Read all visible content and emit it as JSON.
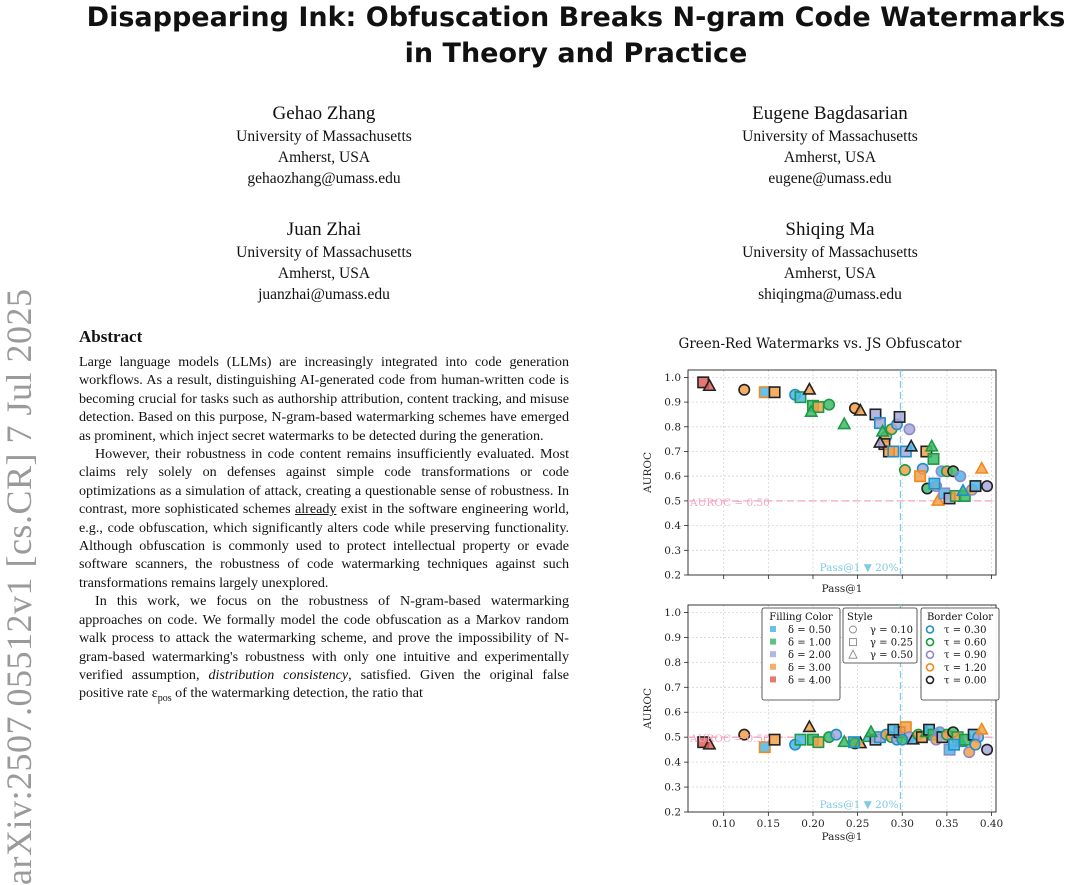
{
  "paper": {
    "title_line1": "Disappearing Ink: Obfuscation Breaks N-gram Code Watermarks",
    "title_line2": "in Theory and Practice",
    "authors": [
      {
        "name": "Gehao Zhang",
        "affil": "University of Massachusetts",
        "loc": "Amherst, USA",
        "email": "gehaozhang@umass.edu"
      },
      {
        "name": "Eugene Bagdasarian",
        "affil": "University of Massachusetts",
        "loc": "Amherst, USA",
        "email": "eugene@umass.edu"
      },
      {
        "name": "Juan Zhai",
        "affil": "University of Massachusetts",
        "loc": "Amherst, USA",
        "email": "juanzhai@umass.edu"
      },
      {
        "name": "Shiqing Ma",
        "affil": "University of Massachusetts",
        "loc": "Amherst, USA",
        "email": "shiqingma@umass.edu"
      }
    ],
    "arxiv_id": "arXiv:2507.05512v1  [cs.CR]  7 Jul 2025",
    "abstract_heading": "Abstract",
    "p1": "Large language models (LLMs) are increasingly integrated into code generation workflows. As a result, distinguishing AI-generated code from human-written code is becoming crucial for tasks such as authorship attribution, content tracking, and misuse detection. Based on this purpose, N-gram-based watermarking schemes have emerged as prominent, which inject secret watermarks to be detected during the generation.",
    "p2a": "However, their robustness in code content remains insufficiently evaluated. Most claims rely solely on defenses against simple code transformations or code optimizations as a simulation of attack, creating a questionable sense of robustness. In contrast, more sophisticated schemes ",
    "p2u": "already",
    "p2b": " exist in the software engineering world, e.g., code obfuscation, which significantly alters code while preserving functionality. Although obfuscation is commonly used to protect intellectual property or evade software scanners, the robustness of code watermarking techniques against such transformations remains largely unexplored.",
    "p3a": "In this work, we focus on the robustness of N-gram-based watermarking approaches on code. We formally model the code obfuscation as a Markov random walk process to attack the watermarking scheme, and prove the impossibility of N-gram-based watermarking's robustness with only one intuitive and experimentally verified assumption, ",
    "p3i": "distribution consistency",
    "p3b": ", satisfied. Given the original false positive rate ε",
    "p3s": "pos",
    "p3c": " of the watermarking detection, the ratio that"
  },
  "figure": {
    "title": "Green-Red Watermarks vs. JS Obfuscator",
    "ylabel": "AUROC",
    "xlabel": "Pass@1",
    "baseline_label": "AUROC = 0.50",
    "threshold_label": "Pass@1 ▼ 20%",
    "legend": {
      "fill_title": "Filling Color",
      "fill_items": [
        "δ = 0.50",
        "δ = 1.00",
        "δ = 2.00",
        "δ = 3.00",
        "δ = 4.00"
      ],
      "style_title": "Style",
      "style_items": [
        "γ = 0.10",
        "γ = 0.25",
        "γ = 0.50"
      ],
      "border_title": "Border Color",
      "border_items": [
        "τ = 0.30",
        "τ = 0.60",
        "τ = 0.90",
        "τ = 1.20",
        "τ = 0.00"
      ]
    },
    "colors": {
      "fill": [
        "#4fb6e8",
        "#3fb86a",
        "#a8a8dc",
        "#f5a04a",
        "#e0605a"
      ],
      "border": [
        "#1f8fc8",
        "#1c9a45",
        "#8b8bc6",
        "#f08a1c",
        "#222222"
      ],
      "baseline": "#f4a6bf",
      "threshold": "#7fcbe0"
    }
  },
  "chart_data": [
    {
      "type": "scatter",
      "title": "Green-Red Watermarks vs. JS Obfuscator",
      "xlabel": "Pass@1",
      "ylabel": "AUROC",
      "xlim": [
        0.06,
        0.405
      ],
      "ylim": [
        0.2,
        1.03
      ],
      "xticks": [
        0.1,
        0.15,
        0.2,
        0.25,
        0.3,
        0.35,
        0.4
      ],
      "yticks": [
        0.2,
        0.3,
        0.4,
        0.5,
        0.6,
        0.7,
        0.8,
        0.9,
        1.0
      ],
      "hline": 0.5,
      "vline": 0.298,
      "grid": true,
      "points": [
        [
          0.077,
          0.98,
          4,
          4,
          1
        ],
        [
          0.084,
          0.965,
          4,
          4,
          2
        ],
        [
          0.123,
          0.95,
          3,
          4,
          0
        ],
        [
          0.146,
          0.94,
          0,
          3,
          1
        ],
        [
          0.157,
          0.94,
          3,
          4,
          1
        ],
        [
          0.18,
          0.93,
          0,
          0,
          0
        ],
        [
          0.186,
          0.92,
          0,
          1,
          1
        ],
        [
          0.196,
          0.95,
          3,
          4,
          2
        ],
        [
          0.2,
          0.885,
          1,
          1,
          1
        ],
        [
          0.206,
          0.88,
          3,
          1,
          1
        ],
        [
          0.218,
          0.89,
          1,
          1,
          0
        ],
        [
          0.198,
          0.86,
          1,
          1,
          2
        ],
        [
          0.235,
          0.81,
          1,
          1,
          2
        ],
        [
          0.247,
          0.875,
          3,
          4,
          0
        ],
        [
          0.253,
          0.865,
          3,
          4,
          2
        ],
        [
          0.27,
          0.85,
          2,
          4,
          1
        ],
        [
          0.275,
          0.815,
          2,
          0,
          1
        ],
        [
          0.282,
          0.76,
          3,
          0,
          0
        ],
        [
          0.288,
          0.79,
          3,
          1,
          0
        ],
        [
          0.294,
          0.81,
          2,
          0,
          0
        ],
        [
          0.297,
          0.84,
          2,
          4,
          1
        ],
        [
          0.304,
          0.7,
          2,
          0,
          1
        ],
        [
          0.308,
          0.79,
          2,
          2,
          0
        ],
        [
          0.31,
          0.72,
          0,
          4,
          2
        ],
        [
          0.303,
          0.625,
          3,
          1,
          0
        ],
        [
          0.28,
          0.73,
          3,
          4,
          1
        ],
        [
          0.285,
          0.7,
          3,
          4,
          1
        ],
        [
          0.29,
          0.7,
          3,
          0,
          1
        ],
        [
          0.275,
          0.735,
          2,
          4,
          2
        ],
        [
          0.278,
          0.78,
          1,
          1,
          2
        ],
        [
          0.323,
          0.63,
          2,
          0,
          0
        ],
        [
          0.32,
          0.6,
          3,
          3,
          1
        ],
        [
          0.327,
          0.7,
          3,
          4,
          1
        ],
        [
          0.333,
          0.72,
          1,
          1,
          2
        ],
        [
          0.335,
          0.67,
          1,
          1,
          1
        ],
        [
          0.328,
          0.55,
          1,
          4,
          0
        ],
        [
          0.338,
          0.56,
          3,
          2,
          0
        ],
        [
          0.34,
          0.5,
          3,
          3,
          2
        ],
        [
          0.344,
          0.62,
          0,
          2,
          0
        ],
        [
          0.347,
          0.53,
          0,
          2,
          1
        ],
        [
          0.35,
          0.62,
          3,
          1,
          0
        ],
        [
          0.353,
          0.51,
          2,
          4,
          1
        ],
        [
          0.357,
          0.62,
          1,
          4,
          0
        ],
        [
          0.36,
          0.52,
          3,
          1,
          1
        ],
        [
          0.365,
          0.6,
          0,
          2,
          0
        ],
        [
          0.37,
          0.52,
          1,
          1,
          1
        ],
        [
          0.378,
          0.545,
          3,
          2,
          0
        ],
        [
          0.382,
          0.56,
          0,
          4,
          1
        ],
        [
          0.389,
          0.63,
          3,
          3,
          2
        ],
        [
          0.395,
          0.56,
          2,
          4,
          0
        ],
        [
          0.368,
          0.54,
          1,
          0,
          2
        ],
        [
          0.336,
          0.57,
          0,
          0,
          1
        ]
      ]
    },
    {
      "type": "scatter",
      "title": "",
      "xlabel": "Pass@1",
      "ylabel": "AUROC",
      "xlim": [
        0.06,
        0.405
      ],
      "ylim": [
        0.2,
        1.03
      ],
      "xticks": [
        0.1,
        0.15,
        0.2,
        0.25,
        0.3,
        0.35,
        0.4
      ],
      "yticks": [
        0.2,
        0.3,
        0.4,
        0.5,
        0.6,
        0.7,
        0.8,
        0.9,
        1.0
      ],
      "hline": 0.5,
      "vline": 0.298,
      "grid": true,
      "points": [
        [
          0.077,
          0.48,
          4,
          4,
          1
        ],
        [
          0.084,
          0.47,
          4,
          4,
          2
        ],
        [
          0.123,
          0.51,
          3,
          4,
          0
        ],
        [
          0.146,
          0.46,
          0,
          3,
          1
        ],
        [
          0.157,
          0.49,
          3,
          4,
          1
        ],
        [
          0.18,
          0.47,
          0,
          0,
          0
        ],
        [
          0.186,
          0.49,
          0,
          1,
          1
        ],
        [
          0.196,
          0.54,
          3,
          4,
          2
        ],
        [
          0.2,
          0.49,
          1,
          1,
          1
        ],
        [
          0.206,
          0.48,
          3,
          1,
          1
        ],
        [
          0.218,
          0.5,
          1,
          1,
          0
        ],
        [
          0.235,
          0.48,
          1,
          1,
          2
        ],
        [
          0.247,
          0.475,
          3,
          4,
          0
        ],
        [
          0.253,
          0.475,
          3,
          4,
          2
        ],
        [
          0.262,
          0.5,
          0,
          1,
          2
        ],
        [
          0.27,
          0.49,
          2,
          4,
          1
        ],
        [
          0.275,
          0.5,
          2,
          0,
          1
        ],
        [
          0.282,
          0.51,
          3,
          0,
          0
        ],
        [
          0.288,
          0.5,
          3,
          1,
          0
        ],
        [
          0.294,
          0.49,
          2,
          0,
          0
        ],
        [
          0.297,
          0.52,
          2,
          4,
          1
        ],
        [
          0.304,
          0.54,
          3,
          3,
          1
        ],
        [
          0.308,
          0.5,
          2,
          2,
          0
        ],
        [
          0.312,
          0.49,
          0,
          4,
          2
        ],
        [
          0.318,
          0.51,
          3,
          1,
          0
        ],
        [
          0.322,
          0.5,
          3,
          4,
          1
        ],
        [
          0.327,
          0.52,
          1,
          1,
          2
        ],
        [
          0.33,
          0.53,
          0,
          4,
          1
        ],
        [
          0.335,
          0.51,
          1,
          1,
          1
        ],
        [
          0.338,
          0.49,
          3,
          2,
          0
        ],
        [
          0.342,
          0.52,
          0,
          2,
          0
        ],
        [
          0.345,
          0.5,
          2,
          4,
          1
        ],
        [
          0.35,
          0.51,
          3,
          1,
          0
        ],
        [
          0.353,
          0.45,
          0,
          2,
          1
        ],
        [
          0.357,
          0.52,
          1,
          4,
          0
        ],
        [
          0.362,
          0.5,
          3,
          1,
          1
        ],
        [
          0.366,
          0.48,
          1,
          0,
          2
        ],
        [
          0.37,
          0.49,
          1,
          1,
          1
        ],
        [
          0.375,
          0.44,
          3,
          2,
          0
        ],
        [
          0.38,
          0.51,
          0,
          4,
          1
        ],
        [
          0.385,
          0.5,
          2,
          0,
          0
        ],
        [
          0.389,
          0.53,
          3,
          3,
          2
        ],
        [
          0.395,
          0.45,
          2,
          4,
          0
        ],
        [
          0.3,
          0.49,
          1,
          0,
          0
        ],
        [
          0.29,
          0.53,
          0,
          4,
          1
        ],
        [
          0.265,
          0.52,
          1,
          1,
          2
        ],
        [
          0.246,
          0.48,
          1,
          0,
          1
        ],
        [
          0.226,
          0.51,
          2,
          0,
          0
        ],
        [
          0.358,
          0.47,
          0,
          0,
          1
        ],
        [
          0.382,
          0.47,
          3,
          0,
          0
        ]
      ]
    }
  ]
}
